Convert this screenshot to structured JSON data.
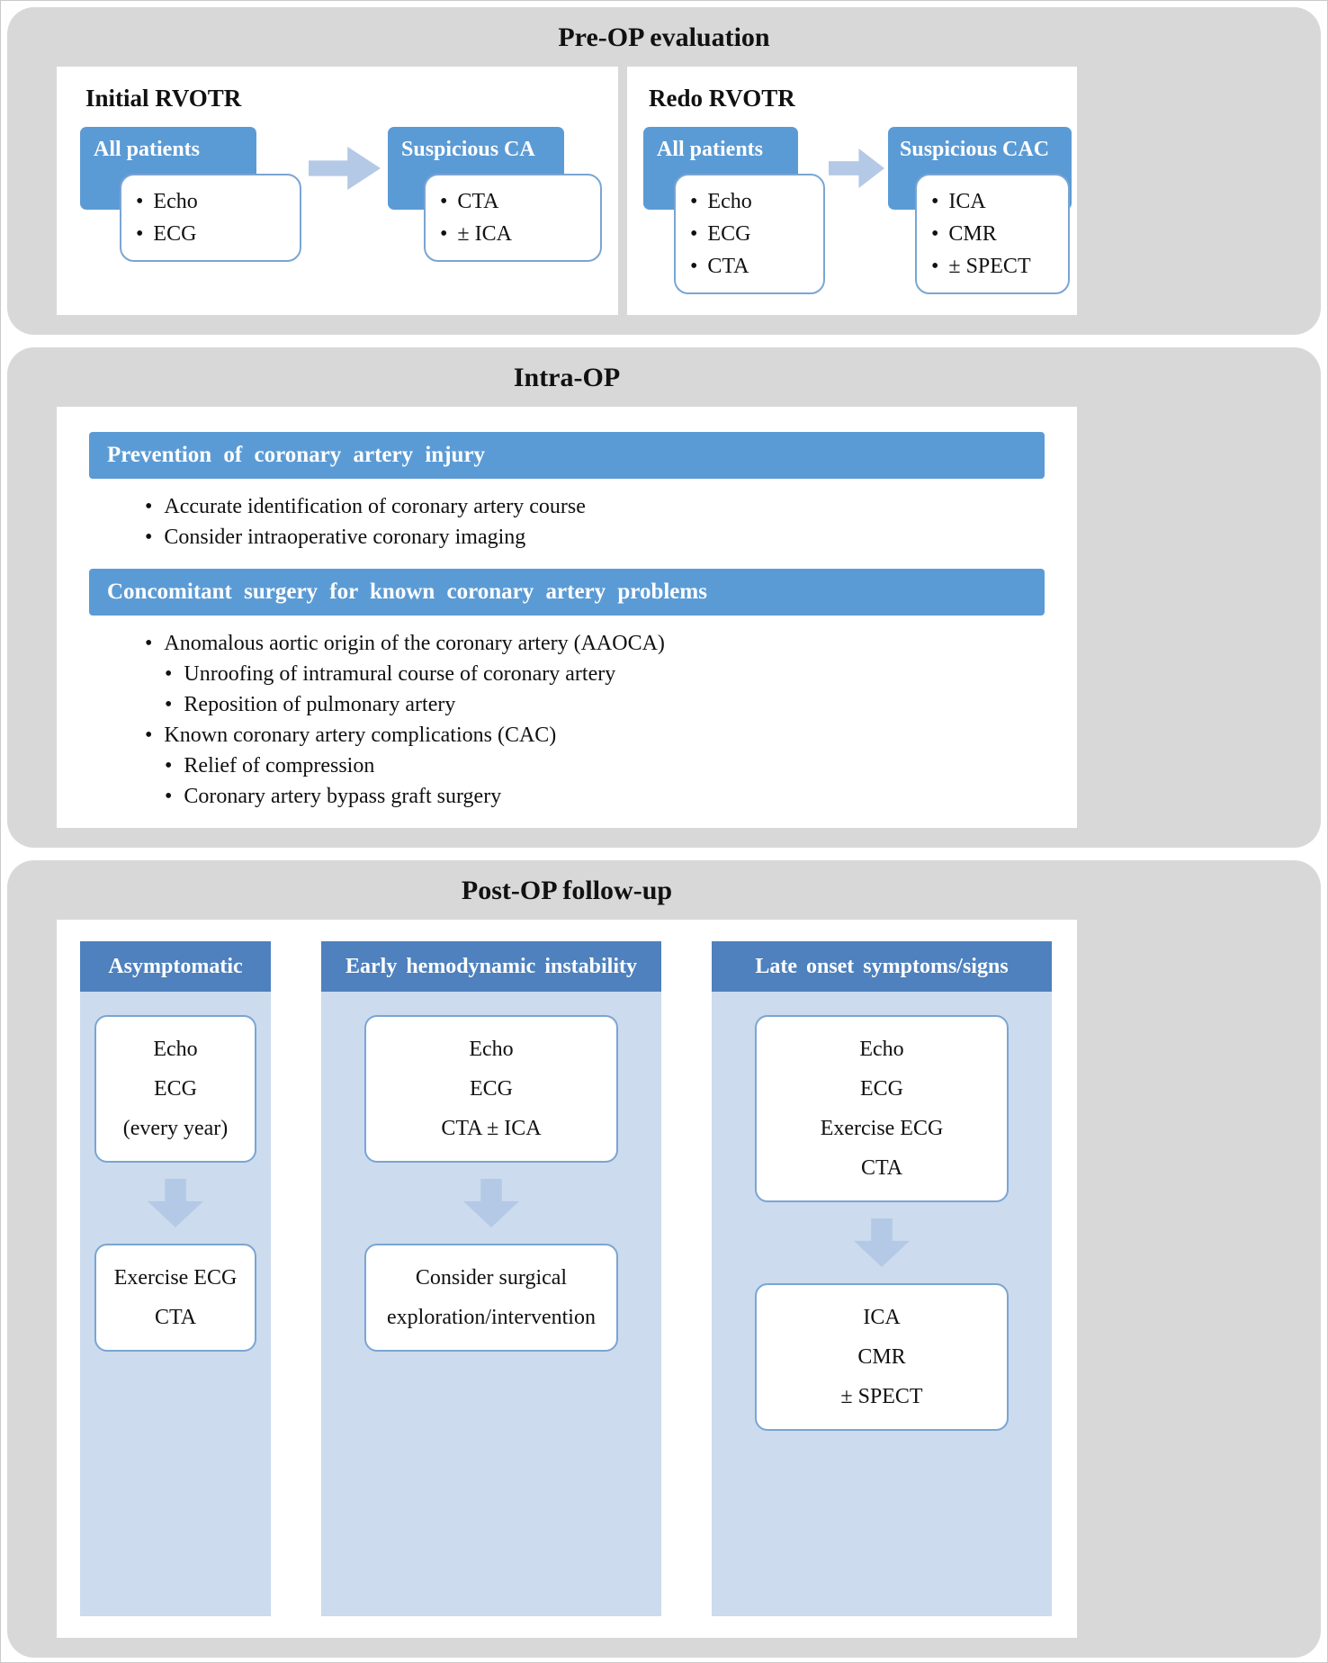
{
  "figure": {
    "pre_op": {
      "title": "Pre-OP evaluation",
      "panels": [
        {
          "title": "Initial RVOTR",
          "steps": [
            {
              "label": "All patients",
              "items": [
                "Echo",
                "ECG"
              ]
            },
            {
              "label": "Suspicious CA",
              "items": [
                "CTA",
                "± ICA"
              ]
            }
          ]
        },
        {
          "title": "Redo RVOTR",
          "steps": [
            {
              "label": "All patients",
              "items": [
                "Echo",
                "ECG",
                "CTA"
              ]
            },
            {
              "label": "Suspicious CAC",
              "items": [
                "ICA",
                "CMR",
                "± SPECT"
              ]
            }
          ]
        }
      ]
    },
    "intra_op": {
      "title": "Intra-OP",
      "groups": [
        {
          "header": "Prevention of coronary artery injury",
          "bullets": [
            {
              "text": "Accurate identification of coronary artery course",
              "indent": 0
            },
            {
              "text": "Consider intraoperative coronary imaging",
              "indent": 0
            }
          ]
        },
        {
          "header": "Concomitant surgery for known coronary artery problems",
          "bullets": [
            {
              "text": "Anomalous aortic origin of the coronary artery (AAOCA)",
              "indent": 0
            },
            {
              "text": "Unroofing of intramural course of coronary artery",
              "indent": 1
            },
            {
              "text": "Reposition of pulmonary artery",
              "indent": 1
            },
            {
              "text": "Known coronary artery complications (CAC)",
              "indent": 0
            },
            {
              "text": "Relief of compression",
              "indent": 1
            },
            {
              "text": "Coronary artery bypass graft surgery",
              "indent": 1
            }
          ]
        }
      ]
    },
    "post_op": {
      "title": "Post-OP follow-up",
      "columns": [
        {
          "header": "Asymptomatic",
          "box1_lines": [
            "Echo",
            "ECG",
            "(every year)"
          ],
          "box2_lines": [
            "Exercise ECG",
            "CTA"
          ]
        },
        {
          "header": "Early hemodynamic instability",
          "box1_lines": [
            "Echo",
            "ECG",
            "CTA ± ICA"
          ],
          "box2_lines": [
            "Consider surgical",
            "exploration/intervention"
          ]
        },
        {
          "header": "Late onset symptoms/signs",
          "box1_lines": [
            "Echo",
            "ECG",
            "Exercise ECG",
            "CTA"
          ],
          "box2_lines": [
            "ICA",
            "CMR",
            "± SPECT"
          ]
        }
      ]
    },
    "colors": {
      "section_bg": "#d8d8d8",
      "accent_blue": "#5b9bd5",
      "column_header_blue": "#4e81bd",
      "arrow_blue": "#b4c9e6",
      "column_bg": "#ccdbed",
      "box_border": "#7aa5d3"
    }
  }
}
